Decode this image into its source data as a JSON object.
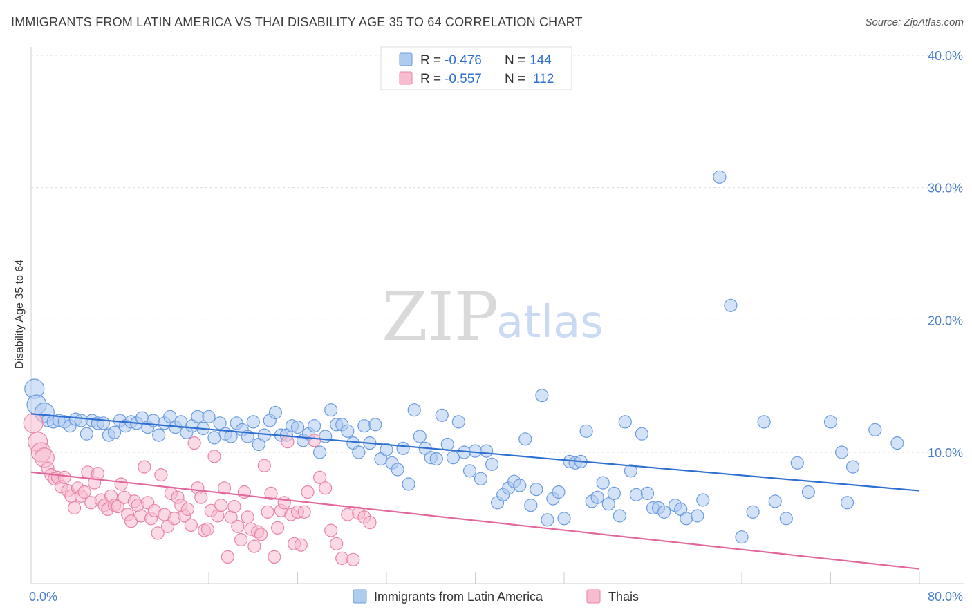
{
  "title": "IMMIGRANTS FROM LATIN AMERICA VS THAI DISABILITY AGE 35 TO 64 CORRELATION CHART",
  "source": "Source: ZipAtlas.com",
  "watermark": {
    "zip": "ZIP",
    "atlas": "atlas"
  },
  "legend": {
    "r_label": "R =",
    "n_label": "N =",
    "rows": [
      {
        "r": "-0.476",
        "n": "144",
        "fill": "#aecbf0",
        "stroke": "#6a9be0"
      },
      {
        "r": "-0.557",
        "n": "112",
        "fill": "#f7bcd0",
        "stroke": "#e883a6"
      }
    ]
  },
  "chart_data": {
    "type": "scatter",
    "title": "IMMIGRANTS FROM LATIN AMERICA VS THAI DISABILITY AGE 35 TO 64 CORRELATION CHART",
    "xlabel": "",
    "ylabel": "Disability Age 35 to 64",
    "xlim": [
      0,
      80
    ],
    "ylim": [
      0,
      42
    ],
    "x_tick_labels": [
      "0.0%",
      "80.0%"
    ],
    "y_ticks": [
      10,
      20,
      30,
      40
    ],
    "y_tick_labels": [
      "10.0%",
      "20.0%",
      "30.0%",
      "40.0%"
    ],
    "grid": true,
    "legend_position": "top-center",
    "series": [
      {
        "name": "Immigrants from Latin America",
        "color": "#6a9be0",
        "fill": "#aecbf0",
        "trend": {
          "x": [
            0,
            80
          ],
          "y": [
            12.9,
            7.1
          ],
          "color": "#2e6fd1"
        },
        "points": [
          [
            0.3,
            14.8
          ],
          [
            0.5,
            13.6
          ],
          [
            1.2,
            13.0
          ],
          [
            1.5,
            12.4
          ],
          [
            2.0,
            12.3
          ],
          [
            2.5,
            12.4
          ],
          [
            3.0,
            12.3
          ],
          [
            3.5,
            12.0
          ],
          [
            4.0,
            12.5
          ],
          [
            4.5,
            12.4
          ],
          [
            5.0,
            11.4
          ],
          [
            5.5,
            12.4
          ],
          [
            6.0,
            12.2
          ],
          [
            6.5,
            12.2
          ],
          [
            7.0,
            11.3
          ],
          [
            7.5,
            11.5
          ],
          [
            8.0,
            12.4
          ],
          [
            8.5,
            12.0
          ],
          [
            9.0,
            12.3
          ],
          [
            9.5,
            12.2
          ],
          [
            10.0,
            12.6
          ],
          [
            10.5,
            11.9
          ],
          [
            11.0,
            12.4
          ],
          [
            11.5,
            11.3
          ],
          [
            12.0,
            12.2
          ],
          [
            12.5,
            12.7
          ],
          [
            13.0,
            11.9
          ],
          [
            13.5,
            12.3
          ],
          [
            14.0,
            11.5
          ],
          [
            14.5,
            12.0
          ],
          [
            15.0,
            12.7
          ],
          [
            15.5,
            11.8
          ],
          [
            16.0,
            12.7
          ],
          [
            16.5,
            11.1
          ],
          [
            17.0,
            12.2
          ],
          [
            17.5,
            11.4
          ],
          [
            18.0,
            11.2
          ],
          [
            18.5,
            12.2
          ],
          [
            19.0,
            11.7
          ],
          [
            19.5,
            11.2
          ],
          [
            20.0,
            12.3
          ],
          [
            20.5,
            10.6
          ],
          [
            21.0,
            11.3
          ],
          [
            21.5,
            12.4
          ],
          [
            22.0,
            13.0
          ],
          [
            22.5,
            11.3
          ],
          [
            23.0,
            11.3
          ],
          [
            23.5,
            12.0
          ],
          [
            24.0,
            11.9
          ],
          [
            24.5,
            10.9
          ],
          [
            25.0,
            11.4
          ],
          [
            25.5,
            12.0
          ],
          [
            26.0,
            10.0
          ],
          [
            26.5,
            11.2
          ],
          [
            27.0,
            13.2
          ],
          [
            27.5,
            12.1
          ],
          [
            28.0,
            12.1
          ],
          [
            28.5,
            11.6
          ],
          [
            29.0,
            10.7
          ],
          [
            29.5,
            10.0
          ],
          [
            30.0,
            12.0
          ],
          [
            30.5,
            10.7
          ],
          [
            31.0,
            12.1
          ],
          [
            31.5,
            9.5
          ],
          [
            32.0,
            10.2
          ],
          [
            32.5,
            9.2
          ],
          [
            33.0,
            8.7
          ],
          [
            33.5,
            10.3
          ],
          [
            34.0,
            7.6
          ],
          [
            34.5,
            13.2
          ],
          [
            35.0,
            11.2
          ],
          [
            35.5,
            10.3
          ],
          [
            36.0,
            9.6
          ],
          [
            36.5,
            9.5
          ],
          [
            37.0,
            12.8
          ],
          [
            37.5,
            10.6
          ],
          [
            38.0,
            9.6
          ],
          [
            38.5,
            12.3
          ],
          [
            39.0,
            10.0
          ],
          [
            39.5,
            8.6
          ],
          [
            40.0,
            10.1
          ],
          [
            40.5,
            8.0
          ],
          [
            41.0,
            10.1
          ],
          [
            41.5,
            9.1
          ],
          [
            42.0,
            6.2
          ],
          [
            42.5,
            6.8
          ],
          [
            43.0,
            7.3
          ],
          [
            43.5,
            7.8
          ],
          [
            44.0,
            7.5
          ],
          [
            44.5,
            11.0
          ],
          [
            45.0,
            6.0
          ],
          [
            45.5,
            7.2
          ],
          [
            46.0,
            14.3
          ],
          [
            46.5,
            4.9
          ],
          [
            47.0,
            6.5
          ],
          [
            47.5,
            7.0
          ],
          [
            48.0,
            5.0
          ],
          [
            48.5,
            9.3
          ],
          [
            49.0,
            9.2
          ],
          [
            49.5,
            9.3
          ],
          [
            50.0,
            11.6
          ],
          [
            50.5,
            6.3
          ],
          [
            51.0,
            6.6
          ],
          [
            51.5,
            7.7
          ],
          [
            52.0,
            6.1
          ],
          [
            52.5,
            6.9
          ],
          [
            53.0,
            5.2
          ],
          [
            53.5,
            12.3
          ],
          [
            54.0,
            8.6
          ],
          [
            54.5,
            6.8
          ],
          [
            55.0,
            11.4
          ],
          [
            55.5,
            6.9
          ],
          [
            56.0,
            5.8
          ],
          [
            56.5,
            5.8
          ],
          [
            57.0,
            5.5
          ],
          [
            58.0,
            6.0
          ],
          [
            58.5,
            5.7
          ],
          [
            59.0,
            5.0
          ],
          [
            60.0,
            5.2
          ],
          [
            60.5,
            6.4
          ],
          [
            62.0,
            30.8
          ],
          [
            63.0,
            21.1
          ],
          [
            64.0,
            3.6
          ],
          [
            65.0,
            5.5
          ],
          [
            66.0,
            12.3
          ],
          [
            67.0,
            6.3
          ],
          [
            68.0,
            5.0
          ],
          [
            69.0,
            9.2
          ],
          [
            70.0,
            7.0
          ],
          [
            72.0,
            12.3
          ],
          [
            73.0,
            10.0
          ],
          [
            73.5,
            6.2
          ],
          [
            74.0,
            8.9
          ],
          [
            76.0,
            11.7
          ],
          [
            78.0,
            10.7
          ]
        ]
      },
      {
        "name": "Thais",
        "color": "#e883a6",
        "fill": "#f7bcd0",
        "trend": {
          "x": [
            0,
            80
          ],
          "y": [
            8.5,
            1.2
          ],
          "color": "#e2679a"
        },
        "points": [
          [
            0.2,
            12.2
          ],
          [
            0.6,
            10.8
          ],
          [
            0.9,
            10.0
          ],
          [
            1.2,
            9.6
          ],
          [
            1.5,
            8.8
          ],
          [
            1.8,
            8.3
          ],
          [
            2.1,
            8.0
          ],
          [
            2.4,
            8.1
          ],
          [
            2.7,
            7.4
          ],
          [
            3.0,
            8.1
          ],
          [
            3.3,
            7.1
          ],
          [
            3.6,
            6.7
          ],
          [
            3.9,
            5.8
          ],
          [
            4.2,
            7.3
          ],
          [
            4.5,
            6.7
          ],
          [
            4.8,
            7.0
          ],
          [
            5.1,
            8.5
          ],
          [
            5.4,
            6.2
          ],
          [
            5.7,
            7.7
          ],
          [
            6.0,
            8.4
          ],
          [
            6.3,
            6.4
          ],
          [
            6.6,
            6.0
          ],
          [
            6.9,
            5.7
          ],
          [
            7.2,
            6.7
          ],
          [
            7.5,
            6.0
          ],
          [
            7.8,
            5.9
          ],
          [
            8.1,
            7.6
          ],
          [
            8.4,
            6.6
          ],
          [
            8.7,
            5.3
          ],
          [
            9.0,
            4.8
          ],
          [
            9.3,
            6.3
          ],
          [
            9.6,
            6.0
          ],
          [
            9.9,
            5.2
          ],
          [
            10.2,
            8.9
          ],
          [
            10.5,
            6.2
          ],
          [
            10.8,
            5.0
          ],
          [
            11.1,
            5.6
          ],
          [
            11.4,
            3.9
          ],
          [
            11.7,
            8.3
          ],
          [
            12.0,
            5.3
          ],
          [
            12.3,
            4.4
          ],
          [
            12.6,
            6.9
          ],
          [
            12.9,
            5.0
          ],
          [
            13.2,
            6.6
          ],
          [
            13.5,
            6.0
          ],
          [
            13.8,
            5.2
          ],
          [
            14.1,
            5.7
          ],
          [
            14.4,
            4.5
          ],
          [
            14.7,
            10.7
          ],
          [
            15.0,
            7.3
          ],
          [
            15.3,
            6.6
          ],
          [
            15.6,
            4.1
          ],
          [
            15.9,
            4.2
          ],
          [
            16.2,
            5.6
          ],
          [
            16.5,
            9.7
          ],
          [
            16.8,
            5.2
          ],
          [
            17.1,
            6.0
          ],
          [
            17.4,
            7.3
          ],
          [
            17.7,
            2.1
          ],
          [
            18.0,
            5.1
          ],
          [
            18.3,
            5.9
          ],
          [
            18.6,
            4.4
          ],
          [
            18.9,
            3.4
          ],
          [
            19.2,
            7.0
          ],
          [
            19.5,
            5.1
          ],
          [
            19.8,
            4.2
          ],
          [
            20.1,
            2.9
          ],
          [
            20.4,
            4.0
          ],
          [
            20.7,
            3.8
          ],
          [
            21.0,
            9.0
          ],
          [
            21.3,
            5.5
          ],
          [
            21.6,
            6.9
          ],
          [
            21.9,
            2.1
          ],
          [
            22.2,
            4.3
          ],
          [
            22.5,
            5.6
          ],
          [
            22.8,
            6.2
          ],
          [
            23.1,
            10.8
          ],
          [
            23.4,
            5.3
          ],
          [
            23.7,
            3.1
          ],
          [
            24.0,
            5.5
          ],
          [
            24.3,
            3.0
          ],
          [
            24.6,
            5.5
          ],
          [
            24.9,
            7.0
          ],
          [
            25.5,
            10.9
          ],
          [
            26.0,
            8.1
          ],
          [
            26.5,
            7.3
          ],
          [
            27.0,
            4.1
          ],
          [
            27.5,
            3.1
          ],
          [
            28.0,
            2.0
          ],
          [
            28.5,
            5.3
          ],
          [
            29.0,
            1.9
          ],
          [
            29.5,
            5.4
          ],
          [
            30.0,
            5.1
          ],
          [
            30.5,
            4.7
          ]
        ]
      }
    ]
  },
  "bottom_legend": [
    {
      "label": "Immigrants from Latin America",
      "fill": "#aecbf0",
      "stroke": "#6a9be0"
    },
    {
      "label": "Thais",
      "fill": "#f7bcd0",
      "stroke": "#e883a6"
    }
  ]
}
